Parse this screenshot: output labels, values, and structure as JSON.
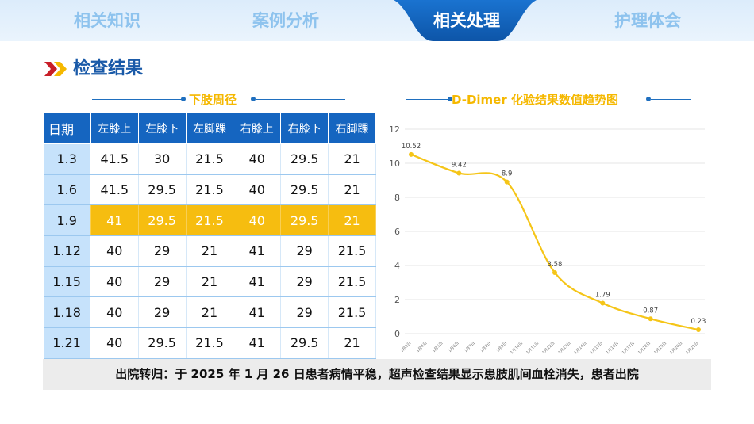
{
  "tabs": [
    {
      "label": "相关知识",
      "active": false
    },
    {
      "label": "案例分析",
      "active": false
    },
    {
      "label": "相关处理",
      "active": true
    },
    {
      "label": "护理体会",
      "active": false
    }
  ],
  "colors": {
    "primary": "#1565c0",
    "accent": "#f6bd10",
    "tab_inactive": "#8ec3ee",
    "heading": "#1a5aa8"
  },
  "section": {
    "title": "检查结果",
    "icon": "double-chevron-right-icon"
  },
  "table_section": {
    "title": "下肢周径"
  },
  "table": {
    "headers": [
      "日期",
      "左膝上",
      "左膝下",
      "左脚踝",
      "右膝上",
      "右膝下",
      "右脚踝"
    ],
    "rows": [
      [
        "1.3",
        "41.5",
        "30",
        "21.5",
        "40",
        "29.5",
        "21"
      ],
      [
        "1.6",
        "41.5",
        "29.5",
        "21.5",
        "40",
        "29.5",
        "21"
      ],
      [
        "1.9",
        "41",
        "29.5",
        "21.5",
        "40",
        "29.5",
        "21"
      ],
      [
        "1.12",
        "40",
        "29",
        "21",
        "41",
        "29",
        "21.5"
      ],
      [
        "1.15",
        "40",
        "29",
        "21",
        "41",
        "29",
        "21.5"
      ],
      [
        "1.18",
        "40",
        "29",
        "21",
        "41",
        "29",
        "21.5"
      ],
      [
        "1.21",
        "40",
        "29.5",
        "21.5",
        "41",
        "29.5",
        "21"
      ]
    ],
    "highlighted_row": 2
  },
  "chart_section": {
    "title": "D-Dimer 化验结果数值趋势图"
  },
  "chart_data": {
    "type": "line",
    "title": "D-Dimer 化验结果数值趋势图",
    "categories": [
      "1月3日",
      "1月4日",
      "1月5日",
      "1月6日",
      "1月7日",
      "1月8日",
      "1月9日",
      "1月10日",
      "1月11日",
      "1月12日",
      "1月13日",
      "1月14日",
      "1月15日",
      "1月16日",
      "1月17日",
      "1月18日",
      "1月19日",
      "1月20日",
      "1月21日"
    ],
    "points": [
      {
        "x": "1月3日",
        "y": 10.52,
        "label": "10.52"
      },
      {
        "x": "1月6日",
        "y": 9.42,
        "label": "9.42"
      },
      {
        "x": "1月9日",
        "y": 8.9,
        "label": "8.9"
      },
      {
        "x": "1月12日",
        "y": 3.58,
        "label": "3.58"
      },
      {
        "x": "1月15日",
        "y": 1.79,
        "label": "1.79"
      },
      {
        "x": "1月18日",
        "y": 0.87,
        "label": "0.87"
      },
      {
        "x": "1月21日",
        "y": 0.23,
        "label": "0.23"
      }
    ],
    "ylim": [
      0,
      12
    ],
    "yticks": [
      "0",
      "2",
      "4",
      "6",
      "8",
      "10",
      "12"
    ],
    "grid": true,
    "line_color": "#f5c518"
  },
  "note": {
    "text": "出院转归：于 2025 年 1 月 26 日患者病情平稳，超声检查结果显示患肢肌间血栓消失，患者出院"
  }
}
